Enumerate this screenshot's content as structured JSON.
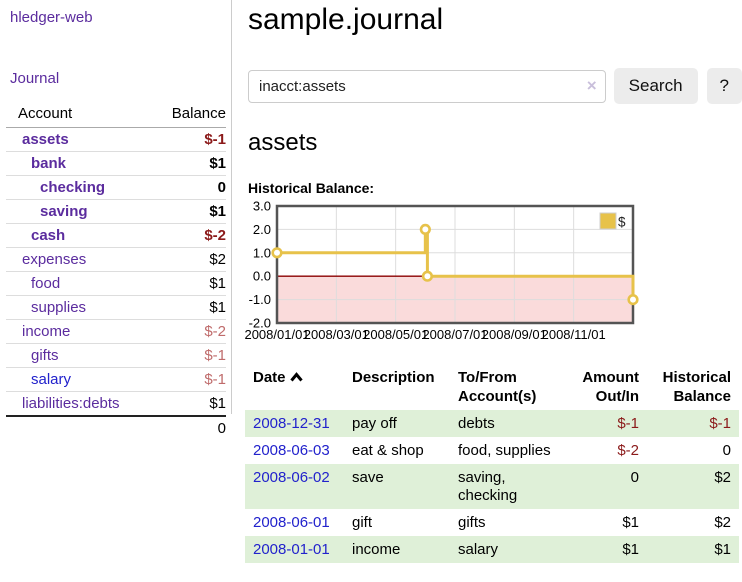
{
  "app": {
    "brand": "hledger-web"
  },
  "colors": {
    "link_visited_purple": "#5b2c9e",
    "link_new_blue": "#2222cc",
    "negative_strong": "#8b1a1a",
    "negative_muted": "#bf6b6b",
    "row_stripe_green": "#dff0d8",
    "chart_series_yellow": "#e7c24a",
    "chart_negative_fill": "#fadbdb",
    "chart_zero_line": "#8b0000",
    "chart_border": "#545454",
    "sidebar_border": "#cccccc",
    "button_bg": "#ececec"
  },
  "sidebar": {
    "nav_journal": "Journal",
    "accounts_table": {
      "headers": {
        "account": "Account",
        "balance": "Balance"
      },
      "rows": [
        {
          "name": "assets",
          "indent": 1,
          "in_acct": true,
          "link": "visited",
          "balance": "$-1",
          "balance_style": "neg-strong"
        },
        {
          "name": "bank",
          "indent": 2,
          "in_acct": true,
          "link": "visited",
          "balance": "$1",
          "balance_style": "strong"
        },
        {
          "name": "checking",
          "indent": 3,
          "in_acct": true,
          "link": "visited",
          "balance": "0",
          "balance_style": "strong"
        },
        {
          "name": "saving",
          "indent": 3,
          "in_acct": true,
          "link": "visited",
          "balance": "$1",
          "balance_style": "strong"
        },
        {
          "name": "cash",
          "indent": 2,
          "in_acct": true,
          "link": "visited",
          "balance": "$-2",
          "balance_style": "neg-strong"
        },
        {
          "name": "expenses",
          "indent": 1,
          "in_acct": false,
          "link": "visited",
          "balance": "$2",
          "balance_style": "plain"
        },
        {
          "name": "food",
          "indent": 2,
          "in_acct": false,
          "link": "visited",
          "balance": "$1",
          "balance_style": "plain"
        },
        {
          "name": "supplies",
          "indent": 2,
          "in_acct": false,
          "link": "visited",
          "balance": "$1",
          "balance_style": "plain"
        },
        {
          "name": "income",
          "indent": 1,
          "in_acct": false,
          "link": "visited",
          "balance": "$-2",
          "balance_style": "neg-muted"
        },
        {
          "name": "gifts",
          "indent": 2,
          "in_acct": false,
          "link": "visited",
          "balance": "$-1",
          "balance_style": "neg-muted"
        },
        {
          "name": "salary",
          "indent": 2,
          "in_acct": false,
          "link": "new",
          "balance": "$-1",
          "balance_style": "neg-muted"
        },
        {
          "name": "liabilities:debts",
          "indent": 1,
          "in_acct": false,
          "link": "visited",
          "balance": "$1",
          "balance_style": "plain"
        }
      ],
      "total": "0"
    }
  },
  "header": {
    "title": "sample.journal"
  },
  "search": {
    "value": "inacct:assets",
    "clear_icon": "×",
    "button": "Search",
    "help_button": "?"
  },
  "account_page": {
    "heading": "assets",
    "chart_label": "Historical Balance:"
  },
  "chart_data": {
    "type": "line",
    "step": true,
    "title": "Historical Balance:",
    "legend": "$",
    "legend_position": "top-right",
    "grid": true,
    "x_unit": "months since 2008-01-01",
    "xlim": [
      0,
      12
    ],
    "ylim": [
      -2,
      3
    ],
    "xticks": [
      0,
      2,
      4,
      6,
      8,
      10
    ],
    "xtick_labels": [
      "2008/01/01",
      "2008/03/01",
      "2008/05/01",
      "2008/07/01",
      "2008/09/01",
      "2008/11/01"
    ],
    "yticks": [
      3,
      2,
      1,
      0,
      -1,
      -2
    ],
    "ytick_labels": [
      "3.0",
      "2.0",
      "1.0",
      "0.0",
      "-1.0",
      "-2.0"
    ],
    "negative_region_shaded": true,
    "series": [
      {
        "name": "$",
        "points": [
          {
            "date": "2008-01-01",
            "x": 0,
            "y": 1
          },
          {
            "date": "2008-06-01",
            "x": 5,
            "y": 2
          },
          {
            "date": "2008-06-03",
            "x": 5.07,
            "y": 0
          },
          {
            "date": "2008-12-31",
            "x": 12,
            "y": -1
          }
        ]
      }
    ]
  },
  "register": {
    "columns": [
      {
        "label": "Date",
        "align": "left",
        "sorted": "asc"
      },
      {
        "label": "Description",
        "align": "left"
      },
      {
        "label": "To/From Account(s)",
        "align": "left"
      },
      {
        "label": "Amount Out/In",
        "align": "right"
      },
      {
        "label": "Historical Balance",
        "align": "right"
      }
    ],
    "rows": [
      {
        "date": "2008-12-31",
        "description": "pay off",
        "to_from": "debts",
        "amount": "$-1",
        "amount_neg": true,
        "balance": "$-1",
        "balance_neg": true
      },
      {
        "date": "2008-06-03",
        "description": "eat & shop",
        "to_from": "food, supplies",
        "amount": "$-2",
        "amount_neg": true,
        "balance": "0",
        "balance_neg": false
      },
      {
        "date": "2008-06-02",
        "description": "save",
        "to_from": "saving,\nchecking",
        "amount": "0",
        "amount_neg": false,
        "balance": "$2",
        "balance_neg": false
      },
      {
        "date": "2008-06-01",
        "description": "gift",
        "to_from": "gifts",
        "amount": "$1",
        "amount_neg": false,
        "balance": "$2",
        "balance_neg": false
      },
      {
        "date": "2008-01-01",
        "description": "income",
        "to_from": "salary",
        "amount": "$1",
        "amount_neg": false,
        "balance": "$1",
        "balance_neg": false
      }
    ]
  }
}
